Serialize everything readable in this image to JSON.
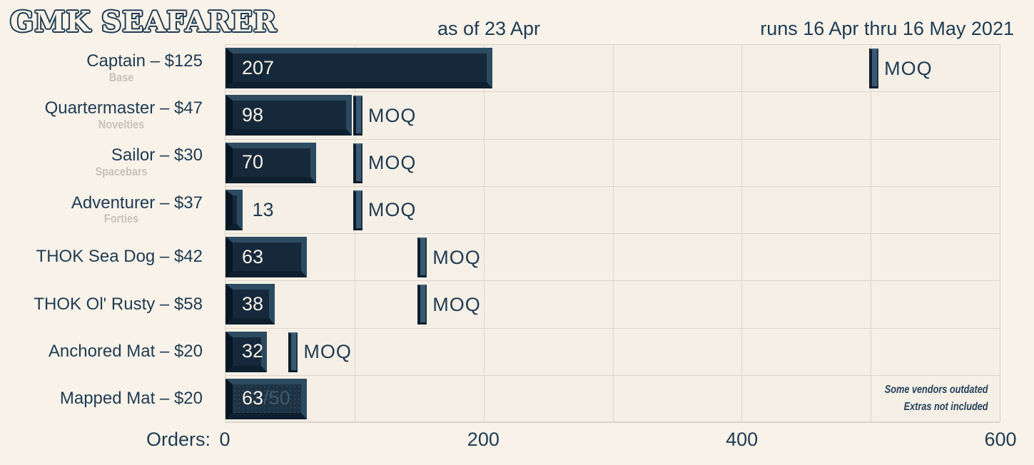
{
  "chart_data": {
    "type": "bar",
    "orientation": "horizontal",
    "title": "GMK SEAFARER",
    "as_of": "as of 23 Apr",
    "runs": "runs 16 Apr thru 16 May 2021",
    "xlabel": "Orders:",
    "xlim": [
      0,
      600
    ],
    "x_ticks": [
      "0",
      "200",
      "400",
      "600"
    ],
    "gridline_step": 100,
    "moq_label": "MOQ",
    "rows": [
      {
        "label": "Captain – $125",
        "sublabel": "Base",
        "orders": 207,
        "moq": 500
      },
      {
        "label": "Quartermaster – $47",
        "sublabel": "Novelties",
        "orders": 98,
        "moq": 100
      },
      {
        "label": "Sailor – $30",
        "sublabel": "Spacebars",
        "orders": 70,
        "moq": 100
      },
      {
        "label": "Adventurer – $37",
        "sublabel": "Forties",
        "orders": 13,
        "moq": 100
      },
      {
        "label": "THOK Sea Dog – $42",
        "sublabel": "",
        "orders": 63,
        "moq": 150
      },
      {
        "label": "THOK Ol' Rusty – $58",
        "sublabel": "",
        "orders": 38,
        "moq": 150
      },
      {
        "label": "Anchored Mat – $20",
        "sublabel": "",
        "orders": 32,
        "moq": 50
      },
      {
        "label": "Mapped Mat – $20",
        "sublabel": "",
        "orders": 63,
        "moq": 50,
        "moq_reached": true,
        "textured": true
      }
    ],
    "notes": [
      "Some vendors outdated",
      "Extras not included"
    ],
    "colors": {
      "background": "#f8f2e9",
      "ink": "#1f3b51",
      "bar_face": "#16293a",
      "bar_bevel_light": "#2d4c61",
      "bar_bevel_dark": "#081623",
      "moq_marker": "#3a5870",
      "value_text": "#f6f0e7",
      "sublabel_gray": "#c7c1b6",
      "gridline": "#ddd6cb",
      "overage_text": "#41596b"
    }
  }
}
